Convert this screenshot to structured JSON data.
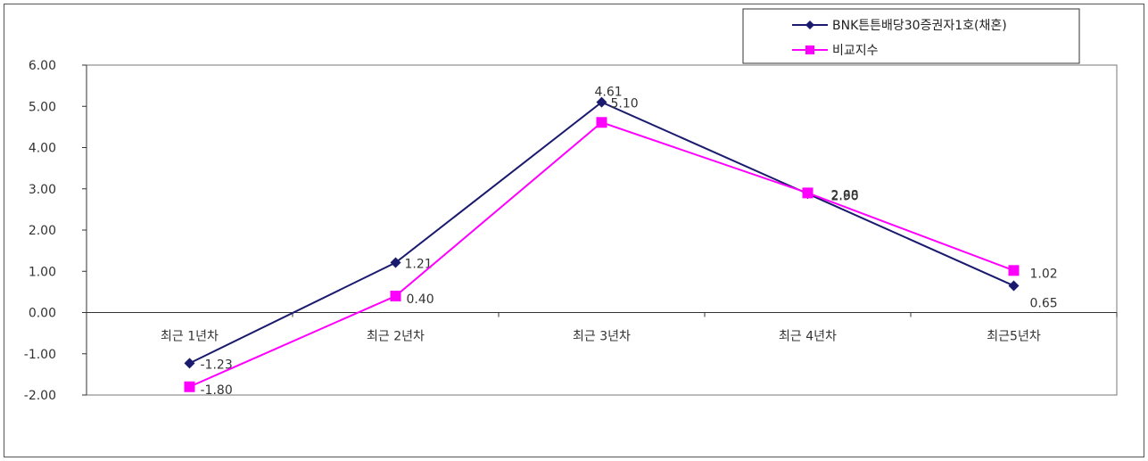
{
  "chart_data": {
    "type": "line",
    "title": "",
    "xlabel": "",
    "ylabel": "",
    "categories": [
      "최근 1년차",
      "최근 2년차",
      "최근 3년차",
      "최근 4년차",
      "최근5년차"
    ],
    "ylim": [
      -2,
      6
    ],
    "yticks": [
      "6.00",
      "5.00",
      "4.00",
      "3.00",
      "2.00",
      "1.00",
      "0.00",
      "-1.00",
      "-2.00"
    ],
    "grid": false,
    "legend_position": "top-right",
    "series": [
      {
        "name": "BNK튼튼배당30증권자1호(채혼)",
        "color": "#1a1a6e",
        "marker": "diamond",
        "values": [
          -1.23,
          1.21,
          5.1,
          2.88,
          0.65
        ],
        "labels": [
          "-1.23",
          "1.21",
          "5.10",
          "2.88",
          "0.65"
        ]
      },
      {
        "name": "비교지수",
        "color": "#ff00ff",
        "marker": "square",
        "values": [
          -1.8,
          0.4,
          4.61,
          2.9,
          1.02
        ],
        "labels": [
          "-1.80",
          "0.40",
          "4.61",
          "2.90",
          "1.02"
        ]
      }
    ]
  }
}
